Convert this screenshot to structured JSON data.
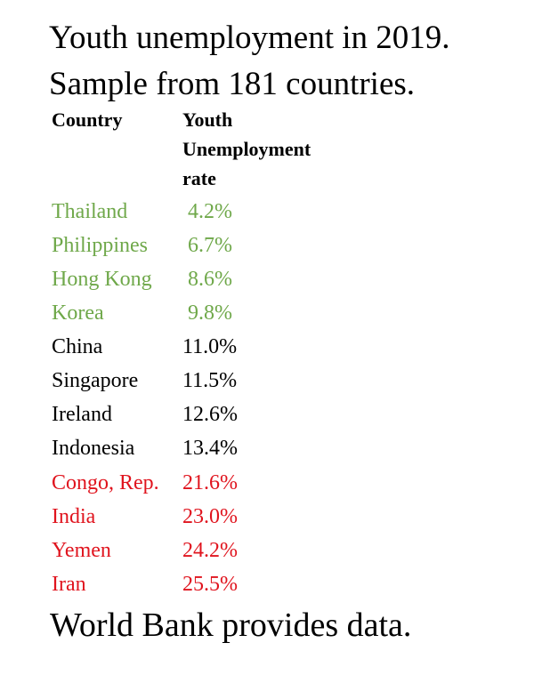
{
  "title": {
    "line1": "Youth unemployment in 2019.",
    "line2": "Sample from 181 countries."
  },
  "table": {
    "headers": {
      "country": "Country",
      "rate_line1": "Youth",
      "rate_line2": "Unemployment",
      "rate_line3": "rate"
    },
    "rows": [
      {
        "country": "Thailand",
        "rate": " 4.2%",
        "color": "#6fa84a"
      },
      {
        "country": "Philippines",
        "rate": " 6.7%",
        "color": "#6fa84a"
      },
      {
        "country": "Hong Kong",
        "rate": " 8.6%",
        "color": "#6fa84a"
      },
      {
        "country": "Korea",
        "rate": " 9.8%",
        "color": "#6fa84a"
      },
      {
        "country": "China",
        "rate": "11.0%",
        "color": "#000000"
      },
      {
        "country": "Singapore",
        "rate": "11.5%",
        "color": "#000000"
      },
      {
        "country": "Ireland",
        "rate": "12.6%",
        "color": "#000000"
      },
      {
        "country": "Indonesia",
        "rate": "13.4%",
        "color": "#000000"
      },
      {
        "country": "Congo, Rep.",
        "rate": "21.6%",
        "color": "#e0141e"
      },
      {
        "country": "India",
        "rate": "23.0%",
        "color": "#e0141e"
      },
      {
        "country": "Yemen",
        "rate": "24.2%",
        "color": "#e0141e"
      },
      {
        "country": "Iran",
        "rate": "25.5%",
        "color": "#e0141e"
      }
    ]
  },
  "footer": {
    "source": "World Bank provides data."
  }
}
